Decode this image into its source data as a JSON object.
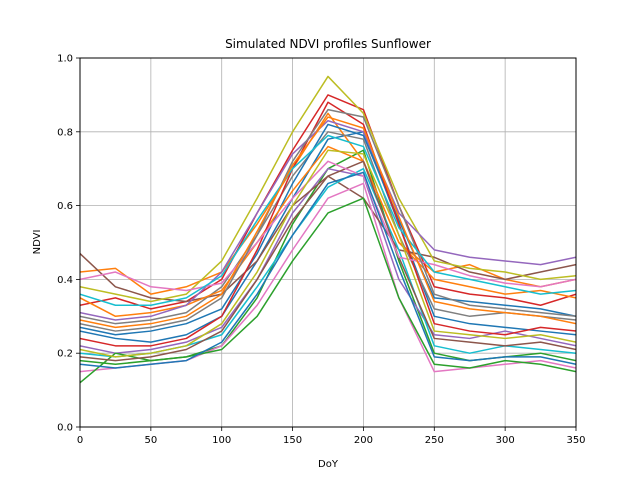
{
  "chart_data": {
    "type": "line",
    "title": "Simulated NDVI profiles Sunflower",
    "xlabel": "DoY",
    "ylabel": "NDVI",
    "xlim": [
      0,
      350
    ],
    "ylim": [
      0.0,
      1.0
    ],
    "x": [
      0,
      25,
      50,
      75,
      100,
      125,
      150,
      175,
      200,
      225,
      250,
      275,
      300,
      325,
      350
    ],
    "xticks": [
      "0",
      "50",
      "100",
      "150",
      "200",
      "250",
      "300",
      "350"
    ],
    "yticks": [
      "0.0",
      "0.2",
      "0.4",
      "0.6",
      "0.8",
      "1.0"
    ],
    "grid": true,
    "legend": "none",
    "palette": [
      "#1f77b4",
      "#ff7f0e",
      "#2ca02c",
      "#d62728",
      "#9467bd",
      "#8c564b",
      "#e377c2",
      "#7f7f7f",
      "#bcbd22",
      "#17becf"
    ],
    "series": [
      {
        "values": [
          0.26,
          0.24,
          0.23,
          0.25,
          0.3,
          0.45,
          0.62,
          0.78,
          0.8,
          0.55,
          0.3,
          0.28,
          0.27,
          0.26,
          0.25
        ]
      },
      {
        "values": [
          0.42,
          0.43,
          0.36,
          0.38,
          0.42,
          0.55,
          0.7,
          0.85,
          0.72,
          0.5,
          0.42,
          0.44,
          0.4,
          0.38,
          0.4
        ]
      },
      {
        "values": [
          0.18,
          0.17,
          0.18,
          0.19,
          0.22,
          0.35,
          0.55,
          0.7,
          0.75,
          0.45,
          0.2,
          0.18,
          0.19,
          0.2,
          0.18
        ]
      },
      {
        "values": [
          0.33,
          0.35,
          0.32,
          0.34,
          0.4,
          0.58,
          0.75,
          0.9,
          0.86,
          0.6,
          0.38,
          0.36,
          0.35,
          0.33,
          0.36
        ]
      },
      {
        "values": [
          0.22,
          0.2,
          0.21,
          0.23,
          0.27,
          0.4,
          0.58,
          0.7,
          0.68,
          0.4,
          0.25,
          0.24,
          0.26,
          0.24,
          0.22
        ]
      },
      {
        "values": [
          0.47,
          0.38,
          0.35,
          0.34,
          0.36,
          0.45,
          0.6,
          0.68,
          0.62,
          0.48,
          0.46,
          0.42,
          0.4,
          0.42,
          0.44
        ]
      },
      {
        "values": [
          0.15,
          0.16,
          0.17,
          0.18,
          0.22,
          0.33,
          0.48,
          0.62,
          0.66,
          0.35,
          0.15,
          0.16,
          0.17,
          0.18,
          0.16
        ]
      },
      {
        "values": [
          0.3,
          0.28,
          0.29,
          0.31,
          0.38,
          0.52,
          0.68,
          0.8,
          0.78,
          0.52,
          0.32,
          0.3,
          0.31,
          0.3,
          0.29
        ]
      },
      {
        "values": [
          0.38,
          0.36,
          0.34,
          0.36,
          0.45,
          0.62,
          0.8,
          0.95,
          0.85,
          0.62,
          0.45,
          0.43,
          0.42,
          0.4,
          0.41
        ]
      },
      {
        "values": [
          0.2,
          0.19,
          0.2,
          0.22,
          0.25,
          0.38,
          0.52,
          0.65,
          0.7,
          0.48,
          0.22,
          0.2,
          0.22,
          0.21,
          0.2
        ]
      },
      {
        "values": [
          0.27,
          0.25,
          0.26,
          0.28,
          0.32,
          0.47,
          0.66,
          0.82,
          0.79,
          0.56,
          0.35,
          0.34,
          0.33,
          0.32,
          0.3
        ]
      },
      {
        "values": [
          0.35,
          0.3,
          0.31,
          0.33,
          0.37,
          0.5,
          0.64,
          0.76,
          0.72,
          0.5,
          0.4,
          0.38,
          0.36,
          0.37,
          0.35
        ]
      },
      {
        "values": [
          0.12,
          0.2,
          0.18,
          0.19,
          0.21,
          0.3,
          0.45,
          0.58,
          0.62,
          0.35,
          0.17,
          0.16,
          0.18,
          0.17,
          0.15
        ]
      },
      {
        "values": [
          0.24,
          0.22,
          0.22,
          0.24,
          0.3,
          0.48,
          0.7,
          0.88,
          0.82,
          0.55,
          0.28,
          0.26,
          0.25,
          0.27,
          0.26
        ]
      },
      {
        "values": [
          0.31,
          0.29,
          0.3,
          0.33,
          0.42,
          0.58,
          0.74,
          0.83,
          0.8,
          0.58,
          0.48,
          0.46,
          0.45,
          0.44,
          0.46
        ]
      },
      {
        "values": [
          0.19,
          0.18,
          0.19,
          0.21,
          0.26,
          0.4,
          0.56,
          0.68,
          0.72,
          0.46,
          0.24,
          0.23,
          0.22,
          0.23,
          0.21
        ]
      },
      {
        "values": [
          0.4,
          0.42,
          0.38,
          0.37,
          0.39,
          0.5,
          0.62,
          0.72,
          0.68,
          0.46,
          0.44,
          0.41,
          0.39,
          0.38,
          0.4
        ]
      },
      {
        "values": [
          0.28,
          0.26,
          0.27,
          0.29,
          0.35,
          0.52,
          0.72,
          0.86,
          0.84,
          0.6,
          0.36,
          0.33,
          0.32,
          0.31,
          0.3
        ]
      },
      {
        "values": [
          0.21,
          0.19,
          0.2,
          0.22,
          0.28,
          0.42,
          0.6,
          0.75,
          0.74,
          0.52,
          0.26,
          0.25,
          0.24,
          0.25,
          0.23
        ]
      },
      {
        "values": [
          0.36,
          0.33,
          0.33,
          0.35,
          0.41,
          0.56,
          0.7,
          0.79,
          0.76,
          0.54,
          0.42,
          0.4,
          0.38,
          0.36,
          0.37
        ]
      },
      {
        "values": [
          0.17,
          0.16,
          0.17,
          0.18,
          0.23,
          0.36,
          0.52,
          0.66,
          0.69,
          0.43,
          0.19,
          0.18,
          0.19,
          0.19,
          0.17
        ]
      },
      {
        "values": [
          0.29,
          0.27,
          0.28,
          0.3,
          0.36,
          0.53,
          0.71,
          0.84,
          0.81,
          0.57,
          0.34,
          0.32,
          0.31,
          0.3,
          0.28
        ]
      }
    ]
  }
}
